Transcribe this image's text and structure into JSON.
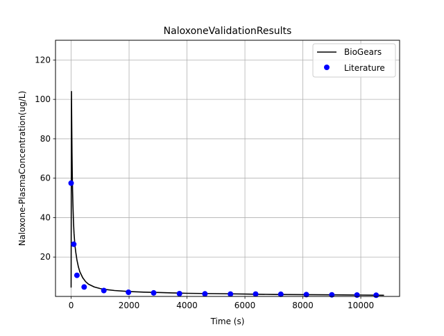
{
  "chart_data": {
    "type": "line",
    "title": "NaloxoneValidationResults",
    "xlabel": "Time (s)",
    "ylabel": "Naloxone-PlasmaConcentration(ug/L)",
    "xlim": [
      -540,
      11340
    ],
    "ylim": [
      0,
      130
    ],
    "xticks": [
      0,
      2000,
      4000,
      6000,
      8000,
      10000
    ],
    "yticks": [
      20,
      40,
      60,
      80,
      100,
      120
    ],
    "grid": true,
    "legend_position": "top-right",
    "series": [
      {
        "name": "BioGears",
        "kind": "line",
        "color": "#000000",
        "x": [
          0,
          10,
          20,
          30,
          40,
          50,
          60,
          80,
          100,
          130,
          160,
          200,
          250,
          300,
          400,
          500,
          600,
          800,
          1000,
          1200,
          1500,
          2000,
          2500,
          3000,
          3500,
          4000,
          5000,
          6000,
          7000,
          8000,
          9000,
          10000,
          10800
        ],
        "y": [
          4.5,
          104,
          88,
          73,
          62,
          54,
          47,
          38,
          32,
          26,
          22.5,
          18.5,
          15,
          12.5,
          9.5,
          7.5,
          6.2,
          4.8,
          4.0,
          3.5,
          3.0,
          2.5,
          2.2,
          2.0,
          1.8,
          1.6,
          1.4,
          1.2,
          1.0,
          0.9,
          0.8,
          0.7,
          0.6
        ]
      },
      {
        "name": "Literature",
        "kind": "scatter",
        "color": "#0000ff",
        "x": [
          0,
          90,
          200,
          450,
          1130,
          1980,
          2850,
          3740,
          4620,
          5500,
          6370,
          7240,
          8120,
          9000,
          9870,
          10530
        ],
        "y": [
          57.5,
          26.5,
          10.7,
          4.8,
          3.0,
          2.1,
          1.8,
          1.4,
          1.3,
          1.2,
          1.2,
          1.1,
          0.9,
          0.8,
          0.7,
          0.6
        ]
      }
    ]
  }
}
